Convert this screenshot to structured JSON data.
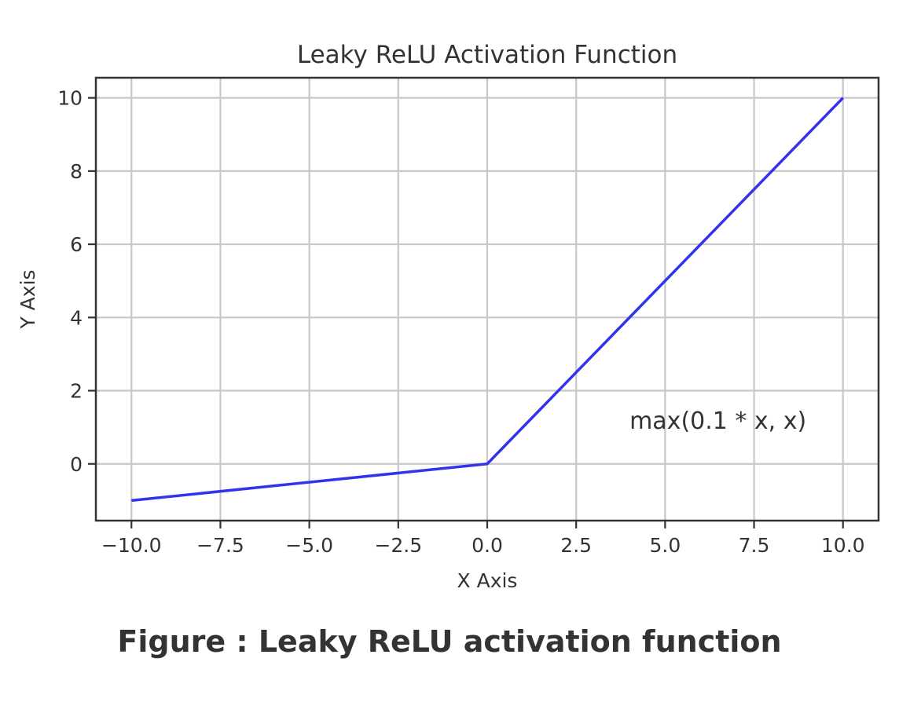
{
  "chart_data": {
    "type": "line",
    "title": "Leaky ReLU Activation Function",
    "xlabel": "X Axis",
    "ylabel": "Y Axis",
    "xlim": [
      -11,
      11
    ],
    "ylim": [
      -1.55,
      10.55
    ],
    "xticks": [
      -10.0,
      -7.5,
      -5.0,
      -2.5,
      0.0,
      2.5,
      5.0,
      7.5,
      10.0
    ],
    "xtick_labels": [
      "−10.0",
      "−7.5",
      "−5.0",
      "−2.5",
      "0.0",
      "2.5",
      "5.0",
      "7.5",
      "10.0"
    ],
    "yticks": [
      0,
      2,
      4,
      6,
      8,
      10
    ],
    "ytick_labels": [
      "0",
      "2",
      "4",
      "6",
      "8",
      "10"
    ],
    "grid": true,
    "series": [
      {
        "name": "Leaky ReLU",
        "color": "#3333ee",
        "x": [
          -10,
          0,
          10
        ],
        "y": [
          -1,
          0,
          10
        ]
      }
    ],
    "annotation": {
      "text": "max(0.1 * x, x)",
      "x": 4,
      "y": 1
    }
  },
  "caption": "Figure : Leaky ReLU activation function"
}
